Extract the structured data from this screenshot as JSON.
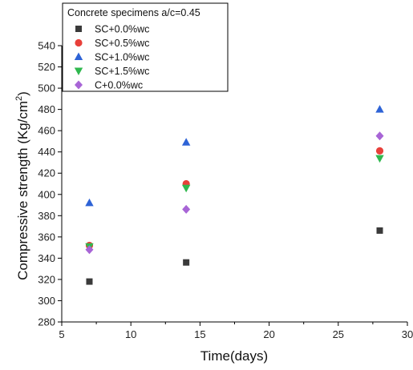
{
  "chart_data": {
    "type": "scatter",
    "xlabel": "Time(days)",
    "ylabel": "Compressive strength (Kg/cm",
    "ylabel_sup": "2",
    "ylabel_end": ")",
    "xlim": [
      5,
      30
    ],
    "ylim": [
      280,
      540
    ],
    "xticks": [
      5,
      10,
      15,
      20,
      25,
      30
    ],
    "yticks": [
      280,
      300,
      320,
      340,
      360,
      380,
      400,
      420,
      440,
      460,
      480,
      500,
      520,
      540
    ],
    "grid": false,
    "legend": {
      "title": "Concrete specimens a/c=0.45",
      "placement": "top-left"
    },
    "series": [
      {
        "name": "SC+0.0%wc",
        "marker": "square",
        "color": "#3a3a3a",
        "x": [
          7,
          14,
          28
        ],
        "y": [
          318,
          336,
          366
        ]
      },
      {
        "name": "SC+0.5%wc",
        "marker": "circle",
        "color": "#e8403a",
        "x": [
          7,
          14,
          28
        ],
        "y": [
          352,
          410,
          441
        ]
      },
      {
        "name": "SC+1.0%wc",
        "marker": "triangle-up",
        "color": "#2e63d6",
        "x": [
          7,
          14,
          28
        ],
        "y": [
          392,
          449,
          480
        ]
      },
      {
        "name": "SC+1.5%wc",
        "marker": "triangle-down",
        "color": "#2fb84e",
        "x": [
          7,
          14,
          28
        ],
        "y": [
          351,
          406,
          434
        ]
      },
      {
        "name": "C+0.0%wc",
        "marker": "diamond",
        "color": "#a865d6",
        "x": [
          7,
          14,
          28
        ],
        "y": [
          348,
          386,
          455
        ]
      }
    ]
  }
}
